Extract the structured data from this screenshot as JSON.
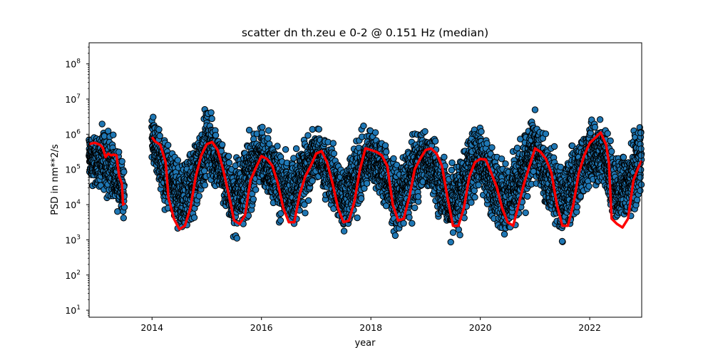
{
  "chart_data": {
    "type": "scatter",
    "title": "scatter dn th.zeu e 0-2 @ 0.151 Hz (median)",
    "xlabel": "year",
    "ylabel": "PSD in nm**2/s",
    "xlim": [
      2012.85,
      2022.95
    ],
    "ylim_log10": [
      0.8,
      8.6
    ],
    "y_scale": "log",
    "x_ticks": [
      2014,
      2016,
      2018,
      2020,
      2022
    ],
    "y_ticks": [
      {
        "base": "10",
        "exp": "1",
        "log10": 1
      },
      {
        "base": "10",
        "exp": "2",
        "log10": 2
      },
      {
        "base": "10",
        "exp": "3",
        "log10": 3
      },
      {
        "base": "10",
        "exp": "4",
        "log10": 4
      },
      {
        "base": "10",
        "exp": "5",
        "log10": 5
      },
      {
        "base": "10",
        "exp": "6",
        "log10": 6
      },
      {
        "base": "10",
        "exp": "7",
        "log10": 7
      },
      {
        "base": "10",
        "exp": "8",
        "log10": 8
      }
    ],
    "grid": false,
    "colors": {
      "scatter_fill": "#1f77b4",
      "scatter_edge": "#000000",
      "median_line": "#ff0000"
    },
    "series": [
      {
        "kind": "scatter",
        "segments": [
          {
            "x_start": 2012.85,
            "x_end": 2013.5,
            "daily_log10_envelope": [
              [
                2012.85,
                4.4,
                6.3
              ],
              [
                2013.0,
                4.2,
                6.2
              ],
              [
                2013.15,
                4.1,
                6.5
              ],
              [
                2013.3,
                3.9,
                6.1
              ],
              [
                2013.4,
                3.5,
                5.7
              ],
              [
                2013.5,
                3.2,
                5.5
              ]
            ]
          },
          {
            "x_start": 2014.0,
            "x_end": 2022.95,
            "daily_log10_envelope": [
              [
                2014.0,
                5.1,
                6.8
              ],
              [
                2014.25,
                3.5,
                6.2
              ],
              [
                2014.5,
                2.7,
                5.4
              ],
              [
                2014.75,
                3.1,
                6.0
              ],
              [
                2015.0,
                4.5,
                7.1
              ],
              [
                2015.25,
                3.9,
                6.3
              ],
              [
                2015.5,
                2.8,
                5.5
              ],
              [
                2015.75,
                3.3,
                6.2
              ],
              [
                2016.0,
                4.3,
                6.5
              ],
              [
                2016.25,
                3.6,
                6.1
              ],
              [
                2016.5,
                2.9,
                5.5
              ],
              [
                2016.75,
                3.4,
                6.1
              ],
              [
                2017.0,
                4.6,
                6.4
              ],
              [
                2017.25,
                3.7,
                6.1
              ],
              [
                2017.5,
                2.9,
                5.5
              ],
              [
                2017.75,
                3.3,
                6.2
              ],
              [
                2018.0,
                4.4,
                6.5
              ],
              [
                2018.25,
                3.6,
                6.1
              ],
              [
                2018.5,
                2.8,
                5.4
              ],
              [
                2018.75,
                3.4,
                6.2
              ],
              [
                2019.0,
                4.4,
                6.4
              ],
              [
                2019.25,
                3.4,
                6.0
              ],
              [
                2019.5,
                2.6,
                5.3
              ],
              [
                2019.75,
                3.4,
                6.2
              ],
              [
                2020.0,
                4.2,
                6.7
              ],
              [
                2020.25,
                3.2,
                5.8
              ],
              [
                2020.5,
                2.9,
                5.4
              ],
              [
                2020.75,
                3.3,
                6.2
              ],
              [
                2021.0,
                4.5,
                6.8
              ],
              [
                2021.25,
                3.5,
                6.1
              ],
              [
                2021.5,
                2.7,
                5.4
              ],
              [
                2021.75,
                3.4,
                6.2
              ],
              [
                2022.0,
                4.3,
                6.6
              ],
              [
                2022.25,
                4.2,
                6.7
              ],
              [
                2022.5,
                3.1,
                5.7
              ],
              [
                2022.75,
                3.3,
                6.1
              ],
              [
                2022.95,
                4.0,
                6.6
              ]
            ]
          }
        ]
      },
      {
        "kind": "line",
        "segments": [
          {
            "points": [
              [
                2012.85,
                5.72
              ],
              [
                2012.95,
                5.76
              ],
              [
                2013.05,
                5.7
              ],
              [
                2013.1,
                5.62
              ],
              [
                2013.15,
                5.35
              ],
              [
                2013.2,
                5.45
              ],
              [
                2013.25,
                5.4
              ],
              [
                2013.3,
                5.42
              ],
              [
                2013.35,
                5.4
              ],
              [
                2013.4,
                4.8
              ],
              [
                2013.45,
                4.6
              ],
              [
                2013.47,
                4.0
              ],
              [
                2013.5,
                4.05
              ]
            ]
          },
          {
            "points": [
              [
                2014.0,
                5.92
              ],
              [
                2014.05,
                5.8
              ],
              [
                2014.15,
                5.7
              ],
              [
                2014.25,
                5.2
              ],
              [
                2014.3,
                4.2
              ],
              [
                2014.4,
                3.6
              ],
              [
                2014.5,
                3.3
              ],
              [
                2014.6,
                3.4
              ],
              [
                2014.7,
                3.9
              ],
              [
                2014.8,
                4.8
              ],
              [
                2014.9,
                5.4
              ],
              [
                2015.0,
                5.72
              ],
              [
                2015.1,
                5.78
              ],
              [
                2015.2,
                5.55
              ],
              [
                2015.3,
                5.0
              ],
              [
                2015.4,
                4.3
              ],
              [
                2015.5,
                3.55
              ],
              [
                2015.6,
                3.45
              ],
              [
                2015.7,
                3.7
              ],
              [
                2015.8,
                4.7
              ],
              [
                2015.9,
                5.05
              ],
              [
                2016.0,
                5.38
              ],
              [
                2016.1,
                5.3
              ],
              [
                2016.2,
                5.1
              ],
              [
                2016.3,
                4.6
              ],
              [
                2016.4,
                3.9
              ],
              [
                2016.5,
                3.5
              ],
              [
                2016.6,
                3.5
              ],
              [
                2016.7,
                4.3
              ],
              [
                2016.8,
                4.8
              ],
              [
                2016.9,
                5.1
              ],
              [
                2017.0,
                5.45
              ],
              [
                2017.1,
                5.52
              ],
              [
                2017.2,
                5.2
              ],
              [
                2017.3,
                4.6
              ],
              [
                2017.4,
                3.9
              ],
              [
                2017.5,
                3.5
              ],
              [
                2017.6,
                3.55
              ],
              [
                2017.7,
                4.1
              ],
              [
                2017.8,
                5.0
              ],
              [
                2017.9,
                5.6
              ],
              [
                2018.0,
                5.55
              ],
              [
                2018.1,
                5.5
              ],
              [
                2018.2,
                5.4
              ],
              [
                2018.3,
                5.1
              ],
              [
                2018.4,
                4.0
              ],
              [
                2018.5,
                3.55
              ],
              [
                2018.6,
                3.6
              ],
              [
                2018.7,
                4.2
              ],
              [
                2018.8,
                5.0
              ],
              [
                2018.9,
                5.3
              ],
              [
                2019.0,
                5.55
              ],
              [
                2019.1,
                5.6
              ],
              [
                2019.2,
                5.45
              ],
              [
                2019.3,
                5.1
              ],
              [
                2019.4,
                4.2
              ],
              [
                2019.5,
                3.4
              ],
              [
                2019.6,
                3.4
              ],
              [
                2019.7,
                3.9
              ],
              [
                2019.8,
                4.8
              ],
              [
                2019.9,
                5.2
              ],
              [
                2020.0,
                5.3
              ],
              [
                2020.1,
                5.28
              ],
              [
                2020.2,
                4.9
              ],
              [
                2020.3,
                4.5
              ],
              [
                2020.4,
                3.9
              ],
              [
                2020.5,
                3.5
              ],
              [
                2020.6,
                3.4
              ],
              [
                2020.7,
                4.0
              ],
              [
                2020.8,
                4.6
              ],
              [
                2020.9,
                5.1
              ],
              [
                2021.0,
                5.6
              ],
              [
                2021.1,
                5.5
              ],
              [
                2021.2,
                5.3
              ],
              [
                2021.3,
                4.9
              ],
              [
                2021.4,
                4.0
              ],
              [
                2021.5,
                3.4
              ],
              [
                2021.6,
                3.4
              ],
              [
                2021.7,
                4.0
              ],
              [
                2021.8,
                4.9
              ],
              [
                2021.9,
                5.4
              ],
              [
                2022.0,
                5.75
              ],
              [
                2022.1,
                5.9
              ],
              [
                2022.2,
                6.05
              ],
              [
                2022.3,
                5.7
              ],
              [
                2022.35,
                5.2
              ],
              [
                2022.4,
                3.6
              ],
              [
                2022.5,
                3.45
              ],
              [
                2022.6,
                3.35
              ],
              [
                2022.7,
                3.6
              ],
              [
                2022.8,
                4.7
              ],
              [
                2022.9,
                5.1
              ],
              [
                2022.95,
                5.25
              ]
            ]
          }
        ]
      }
    ]
  }
}
